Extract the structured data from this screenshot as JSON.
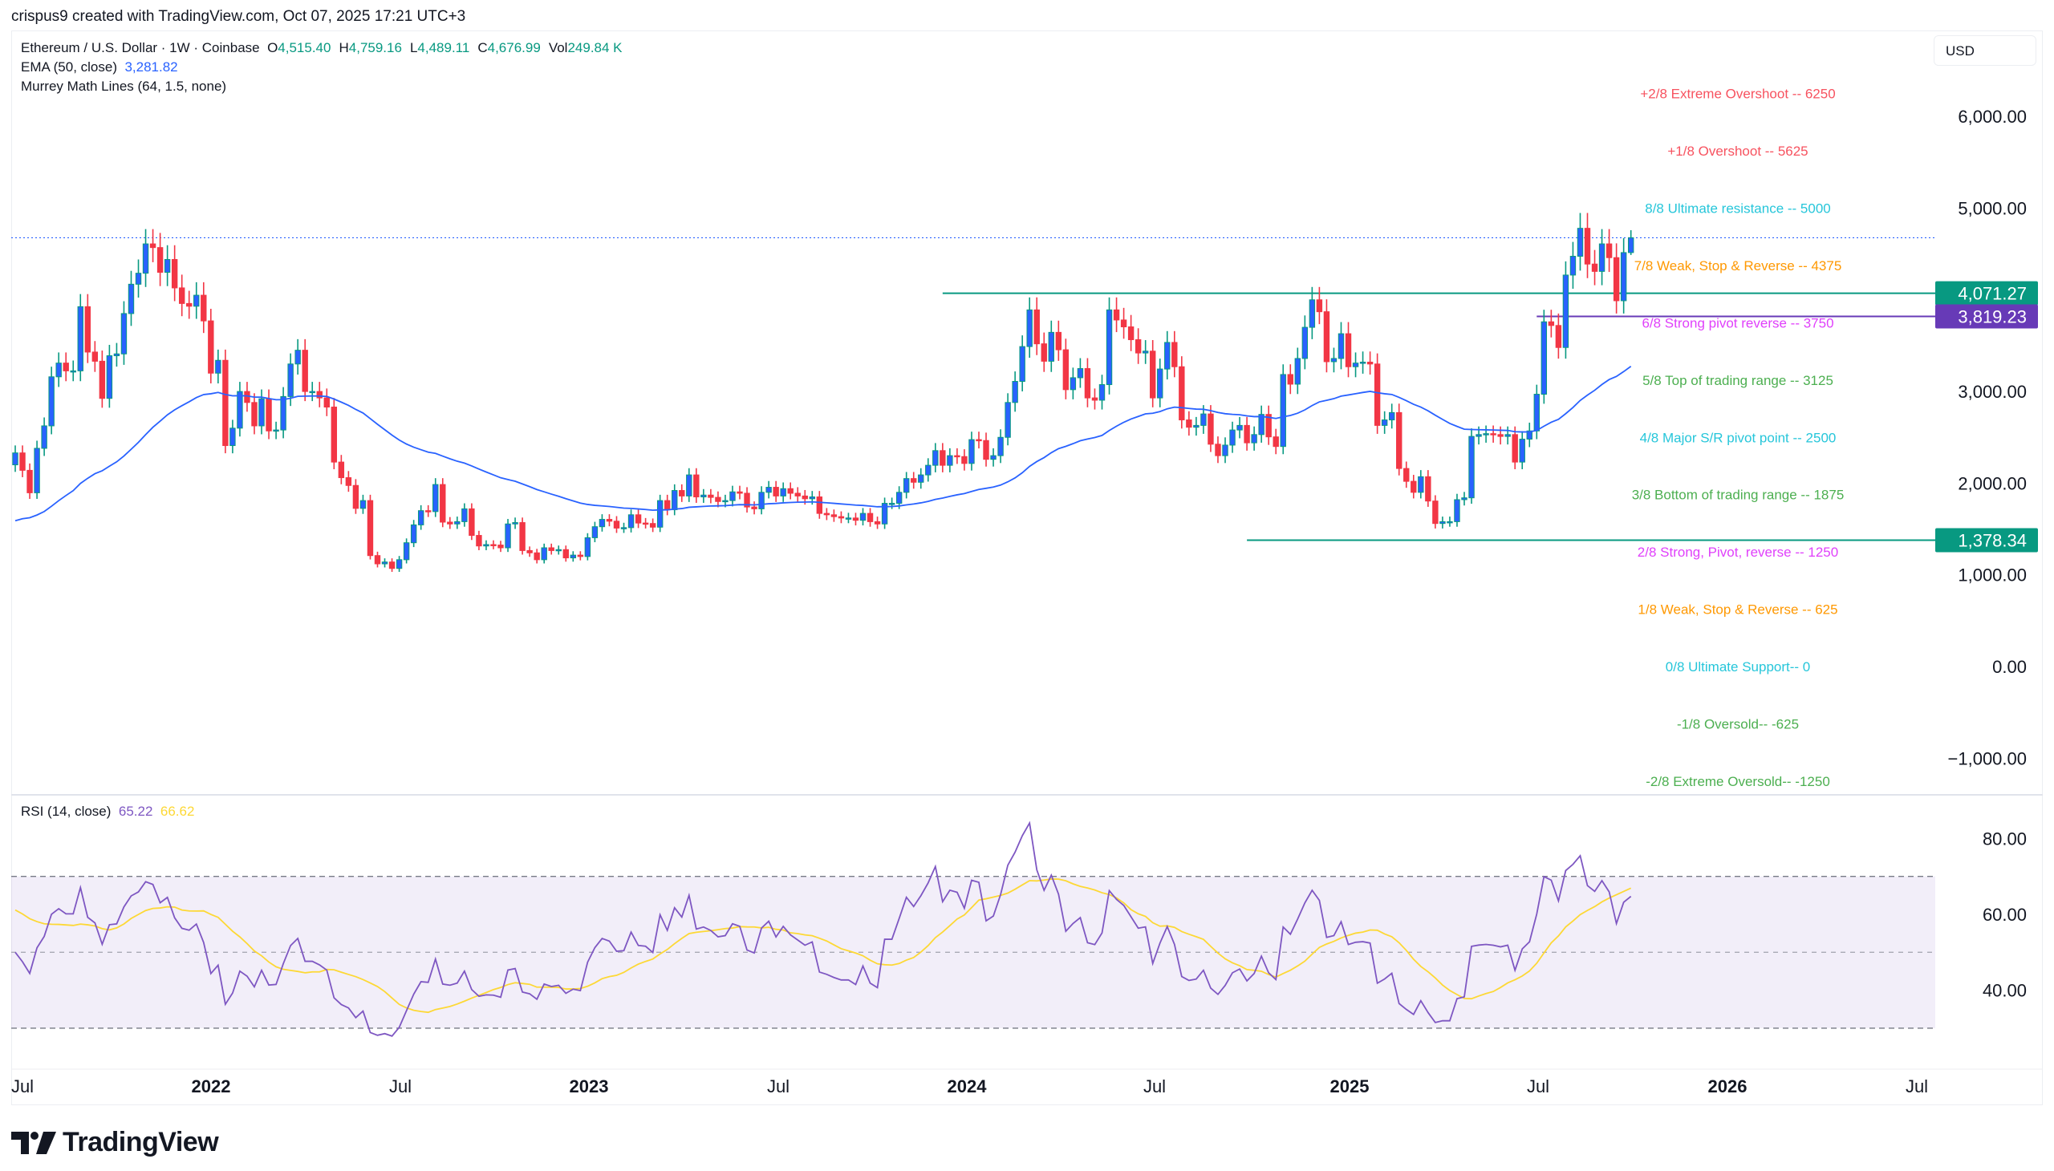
{
  "attribution": "crispus9 created with TradingView.com, Oct 07, 2025 17:21 UTC+3",
  "legend": {
    "symbol": "Ethereum / U.S. Dollar · 1W · Coinbase",
    "open_label": "O",
    "open": "4,515.40",
    "high_label": "H",
    "high": "4,759.16",
    "low_label": "L",
    "low": "4,489.11",
    "close_label": "C",
    "close": "4,676.99",
    "vol_label": "Vol",
    "vol": "249.84 K",
    "ema_label": "EMA (50, close)",
    "ema_value": "3,281.82",
    "murrey_label": "Murrey Math Lines (64, 1.5, none)"
  },
  "currency": "USD",
  "rsi_legend": {
    "label": "RSI (14, close)",
    "rsi": "65.22",
    "ma": "66.62"
  },
  "logo_text": "TradingView",
  "colors": {
    "up_body": "#2962ff",
    "up_wick": "#089981",
    "down": "#f23645",
    "ema": "#2962ff",
    "rsi": "#7e57c2",
    "rsi_ma": "#fdd835",
    "support_line": "#089981",
    "pivot_line": "#673ab7"
  },
  "chart_data": [
    {
      "type": "candlestick",
      "title": "Ethereum / U.S. Dollar · 1W · Coinbase",
      "interval": "weekly",
      "first_week": "2021-06-28",
      "last_week": "2025-10-06",
      "ylim": [
        -1300,
        6600
      ],
      "y_ticks": [
        {
          "value": 6000,
          "label": "6,000.00"
        },
        {
          "value": 5000,
          "label": "5,000.00"
        },
        {
          "value": 3000,
          "label": "3,000.00"
        },
        {
          "value": 2000,
          "label": "2,000.00"
        },
        {
          "value": 1000,
          "label": "1,000.00"
        },
        {
          "value": 0,
          "label": "0.00"
        },
        {
          "value": -1000,
          "label": "−1,000.00"
        }
      ],
      "x_ticks": [
        {
          "label": "Jul",
          "major": false
        },
        {
          "label": "2022",
          "major": true
        },
        {
          "label": "Jul",
          "major": false
        },
        {
          "label": "2023",
          "major": true
        },
        {
          "label": "Jul",
          "major": false
        },
        {
          "label": "2024",
          "major": true
        },
        {
          "label": "Jul",
          "major": false
        },
        {
          "label": "2025",
          "major": true
        },
        {
          "label": "Jul",
          "major": false
        },
        {
          "label": "2026",
          "major": true
        },
        {
          "label": "Jul",
          "major": false
        }
      ],
      "closes": [
        2330,
        2140,
        1895,
        2380,
        2625,
        3160,
        3310,
        3225,
        3225,
        3925,
        3430,
        3330,
        2925,
        3390,
        3410,
        3850,
        4170,
        4290,
        4610,
        4570,
        4300,
        4440,
        4130,
        3960,
        3930,
        4050,
        3770,
        3200,
        3340,
        2410,
        2600,
        3000,
        2880,
        2625,
        2920,
        2570,
        2580,
        2945,
        3300,
        3450,
        3000,
        3000,
        2930,
        2830,
        2230,
        2060,
        1975,
        1725,
        1810,
        1210,
        1120,
        1140,
        1070,
        1165,
        1350,
        1545,
        1700,
        1690,
        1985,
        1575,
        1555,
        1580,
        1720,
        1430,
        1315,
        1330,
        1325,
        1295,
        1555,
        1570,
        1265,
        1240,
        1165,
        1295,
        1265,
        1275,
        1185,
        1215,
        1200,
        1405,
        1525,
        1605,
        1585,
        1510,
        1515,
        1655,
        1565,
        1560,
        1520,
        1810,
        1710,
        1920,
        1860,
        2090,
        1850,
        1870,
        1845,
        1800,
        1810,
        1905,
        1890,
        1740,
        1720,
        1900,
        1955,
        1860,
        1940,
        1890,
        1860,
        1830,
        1850,
        1670,
        1655,
        1635,
        1620,
        1620,
        1595,
        1670,
        1580,
        1555,
        1780,
        1780,
        1900,
        2050,
        2010,
        2090,
        2195,
        2355,
        2195,
        2300,
        2290,
        2215,
        2475,
        2465,
        2260,
        2300,
        2500,
        2880,
        3110,
        3490,
        3890,
        3520,
        3330,
        3645,
        3455,
        3020,
        3150,
        3250,
        2930,
        2905,
        3075,
        3890,
        3780,
        3705,
        3565,
        3420,
        3440,
        2930,
        3245,
        3535,
        3270,
        2690,
        2610,
        2630,
        2755,
        2425,
        2300,
        2415,
        2580,
        2630,
        2440,
        2530,
        2750,
        2505,
        2400,
        3185,
        3080,
        3360,
        3700,
        4000,
        3870,
        3325,
        3360,
        3630,
        3270,
        3310,
        3320,
        3300,
        2630,
        2690,
        2770,
        2160,
        2020,
        1900,
        2070,
        1805,
        1560,
        1580,
        1580,
        1820,
        1840,
        2510,
        2530,
        2540,
        2530,
        2510,
        2530,
        2230,
        2480,
        2570,
        2970,
        3760,
        3720,
        3480,
        4270,
        4475,
        4780,
        4390,
        4310,
        4610,
        4460,
        3990,
        4515,
        4676.99
      ],
      "last_candle": {
        "open": 4515.4,
        "high": 4759.16,
        "low": 4489.11,
        "close": 4676.99
      },
      "ema": {
        "name": "EMA (50, close)",
        "period": 50,
        "last": 3281.82
      },
      "murrey_levels": [
        {
          "text": "+2/8 Extreme Overshoot --  6250",
          "level": 6250,
          "color": "#f7525f"
        },
        {
          "text": "+1/8 Overshoot --  5625",
          "level": 5625,
          "color": "#f7525f"
        },
        {
          "text": "8/8 Ultimate resistance --  5000",
          "level": 5000,
          "color": "#26c6da"
        },
        {
          "text": "7/8 Weak, Stop & Reverse --  4375",
          "level": 4375,
          "color": "#ff9800"
        },
        {
          "text": "6/8 Strong pivot reverse --  3750",
          "level": 3750,
          "color": "#e040fb"
        },
        {
          "text": "5/8 Top of trading range --  3125",
          "level": 3125,
          "color": "#4caf50"
        },
        {
          "text": "4/8 Major S/R pivot point --  2500",
          "level": 2500,
          "color": "#26c6da"
        },
        {
          "text": "3/8 Bottom of trading range --  1875",
          "level": 1875,
          "color": "#4caf50"
        },
        {
          "text": "2/8 Strong, Pivot, reverse --  1250",
          "level": 1250,
          "color": "#e040fb"
        },
        {
          "text": "1/8 Weak, Stop & Reverse --  625",
          "level": 625,
          "color": "#ff9800"
        },
        {
          "text": "0/8 Ultimate Support--  0",
          "level": 0,
          "color": "#26c6da"
        },
        {
          "text": "-1/8 Oversold--  -625",
          "level": -625,
          "color": "#4caf50"
        },
        {
          "text": "-2/8 Extreme Oversold--  -1250",
          "level": -1250,
          "color": "#4caf50"
        }
      ],
      "horizontal_lines": [
        {
          "value": 4071.27,
          "label": "4,071.27",
          "color": "#089981",
          "from_week": "2023-12-11"
        },
        {
          "value": 3819.23,
          "label": "3,819.23",
          "color": "#673ab7",
          "from_week": "2025-07-07"
        },
        {
          "value": 1378.34,
          "label": "1,378.34",
          "color": "#089981",
          "from_week": "2024-09-30"
        }
      ],
      "current_price": 4676.99
    },
    {
      "type": "line",
      "title": "RSI (14, close)",
      "ylim": [
        20,
        90
      ],
      "y_ticks": [
        {
          "value": 80,
          "label": "80.00"
        },
        {
          "value": 60,
          "label": "60.00"
        },
        {
          "value": 40,
          "label": "40.00"
        }
      ],
      "bands": [
        70,
        50,
        30
      ],
      "series": [
        {
          "name": "RSI",
          "period": 14,
          "last": 65.22
        },
        {
          "name": "RSI MA",
          "period": 14,
          "last": 66.62
        }
      ]
    }
  ]
}
